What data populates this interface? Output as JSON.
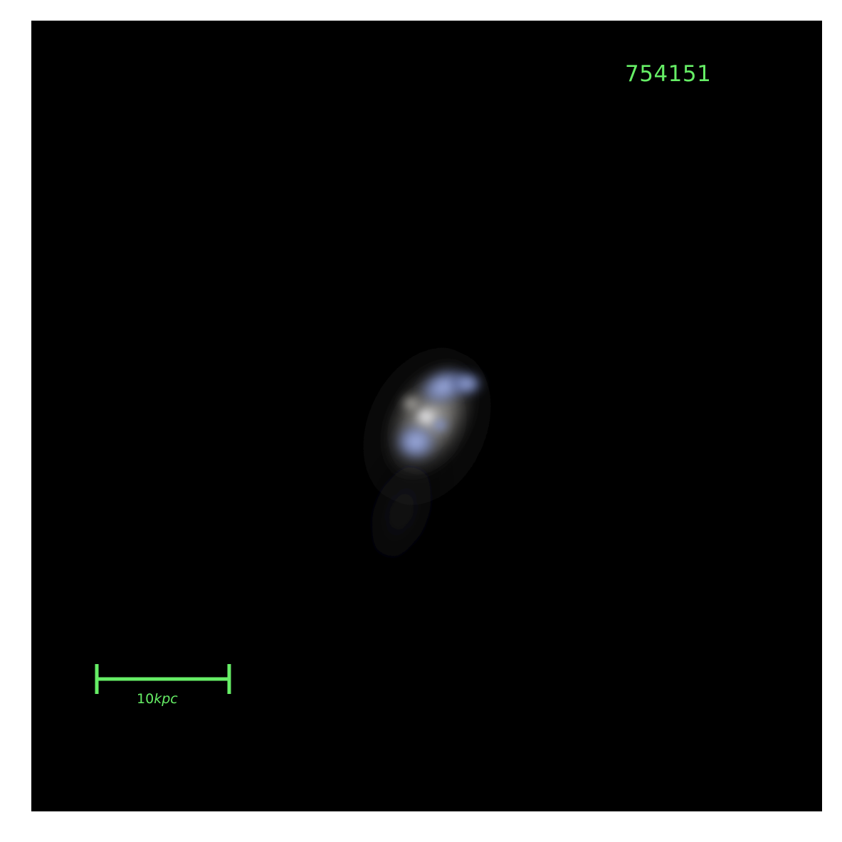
{
  "image": {
    "galaxy_id": "754151",
    "scale_bar": {
      "value": "10",
      "unit": "kpc"
    },
    "colors": {
      "annotation": "#66ee66",
      "background": "#000000",
      "frame_border": "#ffffff"
    }
  }
}
